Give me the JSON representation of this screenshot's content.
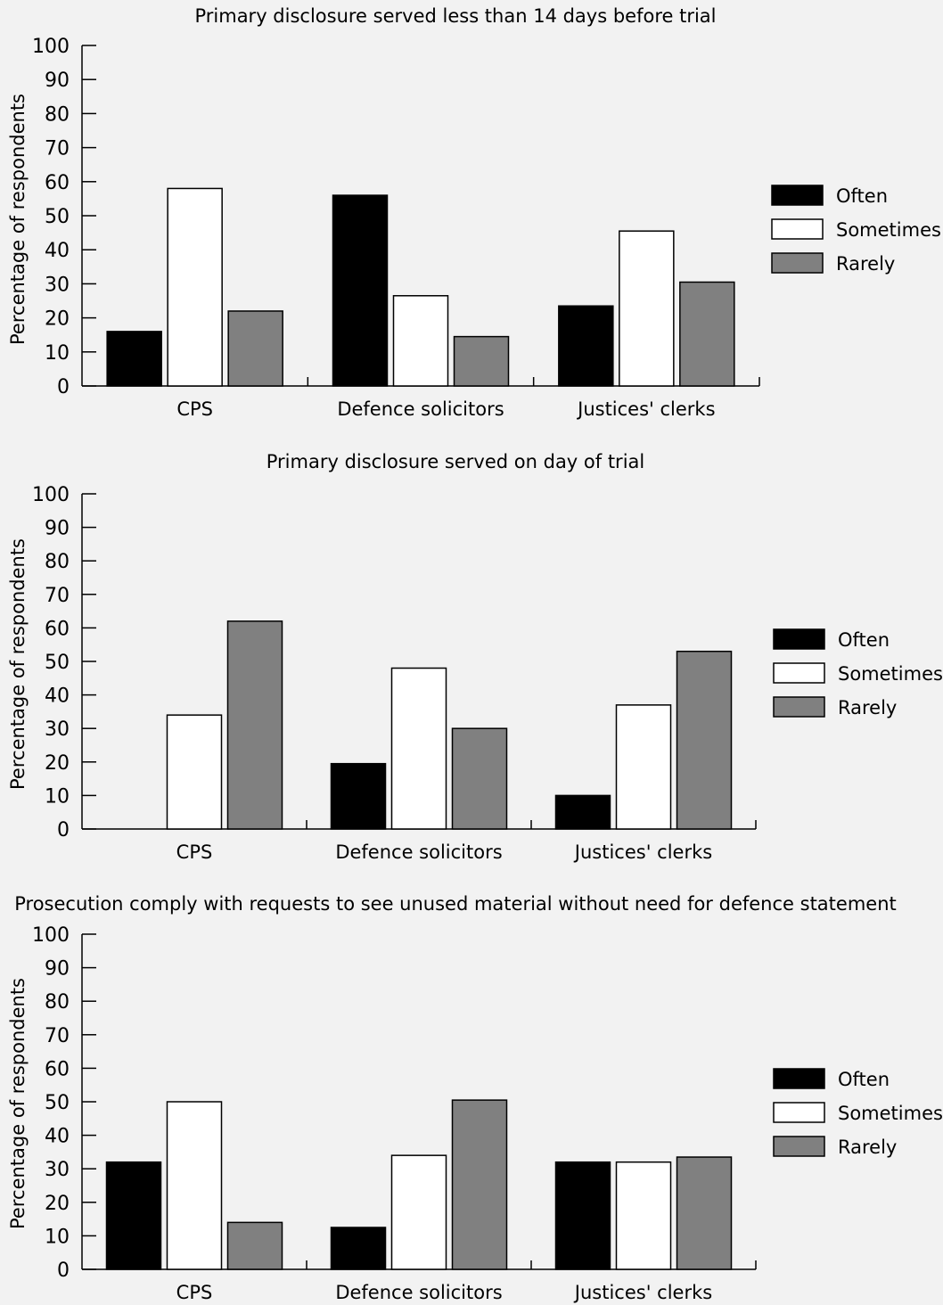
{
  "chart_data": [
    {
      "type": "bar",
      "title": "Primary disclosure served less than 14 days before trial",
      "ylabel": "Percentage of respondents",
      "xlabel": "",
      "ylim": [
        0,
        100
      ],
      "yticks": [
        0,
        10,
        20,
        30,
        40,
        50,
        60,
        70,
        80,
        90,
        100
      ],
      "categories": [
        "CPS",
        "Defence solicitors",
        "Justices' clerks"
      ],
      "series": [
        {
          "name": "Often",
          "color": "#000000",
          "values": [
            16,
            56,
            23.5
          ]
        },
        {
          "name": "Sometimes",
          "color": "#ffffff",
          "values": [
            58,
            26.5,
            45.5
          ]
        },
        {
          "name": "Rarely",
          "color": "#808080",
          "values": [
            22,
            14.5,
            30.5
          ]
        }
      ],
      "legend": "right",
      "grid": false
    },
    {
      "type": "bar",
      "title": "Primary disclosure served on day of trial",
      "ylabel": "Percentage of respondents",
      "xlabel": "",
      "ylim": [
        0,
        100
      ],
      "yticks": [
        0,
        10,
        20,
        30,
        40,
        50,
        60,
        70,
        80,
        90,
        100
      ],
      "categories": [
        "CPS",
        "Defence solicitors",
        "Justices' clerks"
      ],
      "series": [
        {
          "name": "Often",
          "color": "#000000",
          "values": [
            0,
            19.5,
            10
          ]
        },
        {
          "name": "Sometimes",
          "color": "#ffffff",
          "values": [
            34,
            48,
            37
          ]
        },
        {
          "name": "Rarely",
          "color": "#808080",
          "values": [
            62,
            30,
            53
          ]
        }
      ],
      "legend": "right",
      "grid": false
    },
    {
      "type": "bar",
      "title": "Prosecution comply with requests to see unused material without need for defence statement",
      "ylabel": "Percentage of respondents",
      "xlabel": "",
      "ylim": [
        0,
        100
      ],
      "yticks": [
        0,
        10,
        20,
        30,
        40,
        50,
        60,
        70,
        80,
        90,
        100
      ],
      "categories": [
        "CPS",
        "Defence solicitors",
        "Justices' clerks"
      ],
      "series": [
        {
          "name": "Often",
          "color": "#000000",
          "values": [
            32,
            12.5,
            32
          ]
        },
        {
          "name": "Sometimes",
          "color": "#ffffff",
          "values": [
            50,
            34,
            32
          ]
        },
        {
          "name": "Rarely",
          "color": "#808080",
          "values": [
            14,
            50.5,
            33.5
          ]
        }
      ],
      "legend": "right",
      "grid": false
    }
  ]
}
